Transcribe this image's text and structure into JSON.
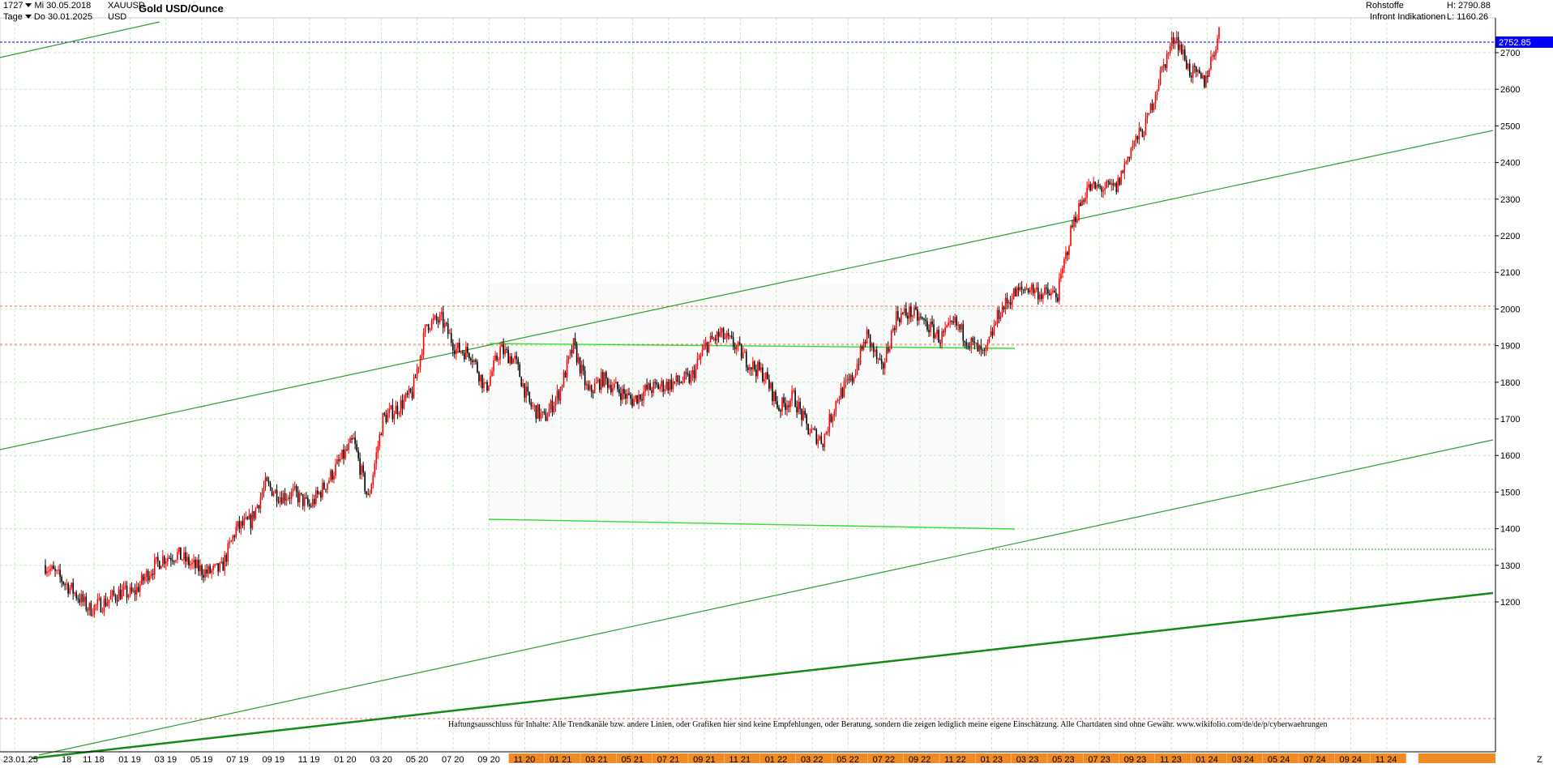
{
  "header": {
    "bar_count": "1727",
    "start_date": "Mi 30.05.2018",
    "end_date": "Do 30.01.2025",
    "interval": "Tage",
    "symbol": "XAUUSD",
    "currency": "USD",
    "title": "Gold USD/Ounce",
    "category": "Rohstoffe",
    "source": "Infront Indikationen",
    "high": "H: 2790.88",
    "low": "L: 1160.26",
    "z_label": "Z"
  },
  "disclaimer": "Haftungsausschluss für Inhalte: Alle Trendkanäle bzw. andere Linien, oder Grafiken hier sind keine Empfehlungen, oder Beratung, sondern die zeigen lediglich meine eigene Einschätzung. Alle Chartdaten sind ohne Gewähr. www.wikifolio.com/de/de/p/cyberwaehrungen",
  "colors": {
    "up": "#ff0000",
    "down": "#000000",
    "trend": "#2e9e2e",
    "trend_bold": "#138a13",
    "triangle": "#33dd33",
    "grid": "#b9ecb9",
    "ref_red": "#ff6b6b",
    "last_price": "#0000ff",
    "axis_band": "#f08a24"
  },
  "chart_data": {
    "type": "candlestick",
    "title": "Gold USD/Ounce",
    "ylim": [
      1160,
      2790
    ],
    "y_ticks": [
      1200,
      1300,
      1400,
      1500,
      1600,
      1700,
      1800,
      1900,
      2000,
      2100,
      2200,
      2300,
      2400,
      2500,
      2600,
      2700
    ],
    "x_ticks": [
      "23.01.25",
      "11 18",
      "01 19",
      "03 19",
      "05 19",
      "07 19",
      "09 19",
      "11 19",
      "01 20",
      "03 20",
      "05 20",
      "07 20",
      "09 20",
      "11 20",
      "01 21",
      "03 21",
      "05 21",
      "07 21",
      "09 21",
      "11 21",
      "01 22",
      "03 22",
      "05 22",
      "07 22",
      "09 22",
      "11 22",
      "01 23",
      "03 23",
      "05 23",
      "07 23",
      "09 23",
      "11 23",
      "01 24",
      "03 24",
      "05 24",
      "07 24",
      "09 24",
      "11 24"
    ],
    "x_tick_extra": "18",
    "last_price": 2752.85,
    "last_price_label": "2752.85",
    "grid": true,
    "price_path": [
      [
        "2018-05",
        1300
      ],
      [
        "2018-06",
        1265
      ],
      [
        "2018-07",
        1225
      ],
      [
        "2018-08",
        1180
      ],
      [
        "2018-09",
        1198
      ],
      [
        "2018-10",
        1225
      ],
      [
        "2018-11",
        1222
      ],
      [
        "2018-12",
        1280
      ],
      [
        "2019-01",
        1320
      ],
      [
        "2019-02",
        1330
      ],
      [
        "2019-03",
        1300
      ],
      [
        "2019-04",
        1280
      ],
      [
        "2019-05",
        1290
      ],
      [
        "2019-06",
        1400
      ],
      [
        "2019-07",
        1420
      ],
      [
        "2019-08",
        1520
      ],
      [
        "2019-09",
        1490
      ],
      [
        "2019-10",
        1495
      ],
      [
        "2019-11",
        1460
      ],
      [
        "2019-12",
        1515
      ],
      [
        "2020-01",
        1580
      ],
      [
        "2020-02",
        1640
      ],
      [
        "2020-03",
        1480
      ],
      [
        "2020-04",
        1700
      ],
      [
        "2020-05",
        1730
      ],
      [
        "2020-06",
        1770
      ],
      [
        "2020-07",
        1960
      ],
      [
        "2020-08",
        1970
      ],
      [
        "2020-09",
        1890
      ],
      [
        "2020-10",
        1880
      ],
      [
        "2020-11",
        1780
      ],
      [
        "2020-12",
        1890
      ],
      [
        "2021-01",
        1860
      ],
      [
        "2021-02",
        1740
      ],
      [
        "2021-03",
        1700
      ],
      [
        "2021-04",
        1770
      ],
      [
        "2021-05",
        1900
      ],
      [
        "2021-06",
        1770
      ],
      [
        "2021-07",
        1810
      ],
      [
        "2021-08",
        1780
      ],
      [
        "2021-09",
        1750
      ],
      [
        "2021-10",
        1780
      ],
      [
        "2021-11",
        1790
      ],
      [
        "2021-12",
        1800
      ],
      [
        "2022-01",
        1810
      ],
      [
        "2022-02",
        1900
      ],
      [
        "2022-03",
        1930
      ],
      [
        "2022-04",
        1900
      ],
      [
        "2022-05",
        1850
      ],
      [
        "2022-06",
        1820
      ],
      [
        "2022-07",
        1730
      ],
      [
        "2022-08",
        1760
      ],
      [
        "2022-09",
        1670
      ],
      [
        "2022-10",
        1640
      ],
      [
        "2022-11",
        1760
      ],
      [
        "2022-12",
        1810
      ],
      [
        "2023-01",
        1930
      ],
      [
        "2023-02",
        1830
      ],
      [
        "2023-03",
        1980
      ],
      [
        "2023-04",
        1990
      ],
      [
        "2023-05",
        1960
      ],
      [
        "2023-06",
        1920
      ],
      [
        "2023-07",
        1960
      ],
      [
        "2023-08",
        1910
      ],
      [
        "2023-09",
        1870
      ],
      [
        "2023-10",
        1990
      ],
      [
        "2023-11",
        2040
      ],
      [
        "2023-12",
        2060
      ],
      [
        "2024-01",
        2040
      ],
      [
        "2024-02",
        2040
      ],
      [
        "2024-03",
        2230
      ],
      [
        "2024-04",
        2330
      ],
      [
        "2024-05",
        2330
      ],
      [
        "2024-06",
        2330
      ],
      [
        "2024-07",
        2440
      ],
      [
        "2024-08",
        2500
      ],
      [
        "2024-09",
        2640
      ],
      [
        "2024-10",
        2750
      ],
      [
        "2024-11",
        2650
      ],
      [
        "2024-12",
        2620
      ],
      [
        "2025-01",
        2752
      ]
    ]
  }
}
